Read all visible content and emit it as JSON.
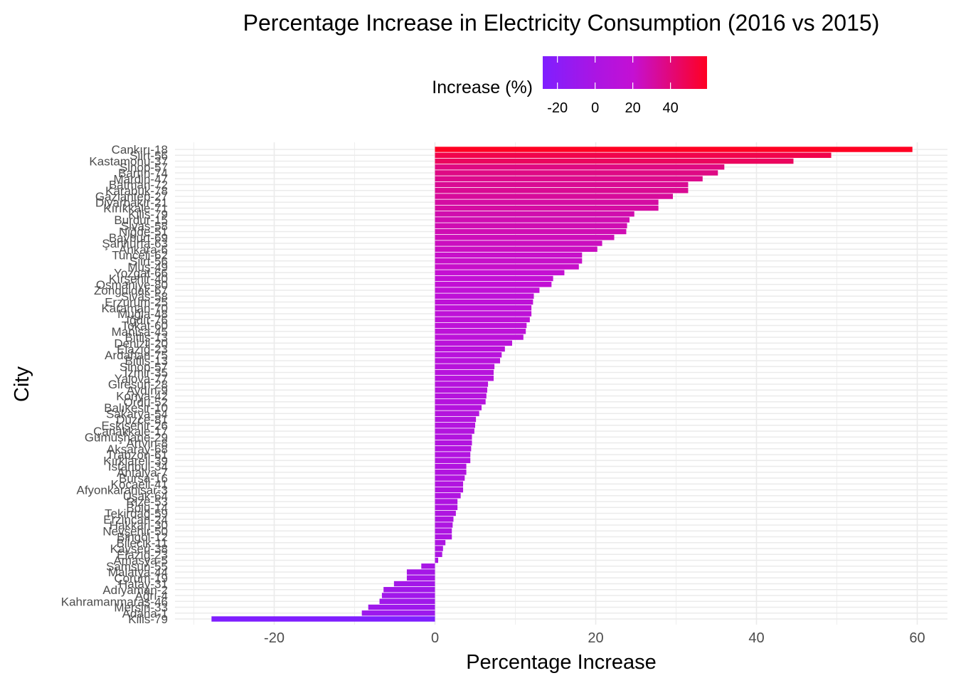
{
  "chart_data": {
    "type": "bar",
    "orientation": "horizontal",
    "title": "Percentage Increase in Electricity Consumption (2016 vs 2015)",
    "xlabel": "Percentage Increase",
    "ylabel": "City",
    "xlim": [
      -31,
      64
    ],
    "x_ticks": [
      -20,
      0,
      20,
      40,
      60
    ],
    "grid": true,
    "legend": {
      "title": "Increase (%)",
      "placement": "top",
      "ticks": [
        -20,
        0,
        20,
        40
      ],
      "range": [
        -27.8,
        59.4
      ],
      "colors": {
        "low": "#7f1fff",
        "mid": "#c410d3",
        "high": "#ff0022"
      }
    },
    "categories": [
      "Cankırı-18",
      "Siirt-56",
      "Kastamonu-37",
      "Sinop-57",
      "Bartın-74",
      "Mardin-47",
      "Batman-72",
      "Karabük-78",
      "Gaziantep-27",
      "Diyarbakır-21",
      "Kırıkkale-71",
      "Kilis-79",
      "Burdur-15",
      "Sivas-58",
      "Niğde-51",
      "Bayburt-69",
      "Şanlıurfa-63",
      "Ankara-6",
      "Tunceli-62",
      "Siirt-56",
      "Muş-49",
      "Yozgat-66",
      "Kırşehir-40",
      "Osmaniye-80",
      "Zonguldak-67",
      "Sivas-58",
      "Erzurum-25",
      "Karaman-70",
      "Muğla-48",
      "Iğdır-76",
      "Tokat-60",
      "Manisa-45",
      "Bitlis-13",
      "Denizli-20",
      "Elazığ-23",
      "Ardahan-75",
      "Bitlis-13",
      "Sinop-57",
      "İzmir-35",
      "Yalova-77",
      "Giresun-28",
      "Aydın-9",
      "Konya-42",
      "Ordu-52",
      "Balıkesir-10",
      "Sakarya-54",
      "Düzce-81",
      "Eskişehir-26",
      "Çanakkale-17",
      "Gümüşhane-29",
      "Artvin-8",
      "Aksaray-68",
      "Trabzon-61",
      "Kırklareli-39",
      "İstanbul-34",
      "Antalya-7",
      "Bursa-16",
      "Kocaeli-41",
      "Afyonkarahisar-3",
      "Uşak-64",
      "Rize-53",
      "Bolu-14",
      "Tekirdağ-59",
      "Erzincan-24",
      "Hakkari-30",
      "Nevşehir-50",
      "Bingöl-12",
      "Bilecik-11",
      "Kayseri-38",
      "Elazığ-23",
      "Amasya-5",
      "Samsun-55",
      "Malatya-44",
      "Çorum-19",
      "Hatay-31",
      "Adıyaman-2",
      "Ağrı-4",
      "Kahramanmaraş-46",
      "Mersin-33",
      "Adana-1",
      "Kilis-79"
    ],
    "values": [
      59.4,
      49.3,
      44.6,
      36.0,
      35.2,
      33.3,
      31.5,
      31.5,
      29.6,
      27.8,
      27.8,
      24.8,
      24.2,
      23.9,
      23.8,
      22.3,
      20.8,
      20.2,
      18.3,
      18.3,
      17.9,
      16.1,
      14.7,
      14.5,
      13.0,
      12.3,
      12.2,
      12.0,
      12.0,
      11.8,
      11.4,
      11.3,
      11.0,
      9.6,
      8.7,
      8.3,
      8.1,
      7.4,
      7.3,
      7.3,
      6.6,
      6.5,
      6.4,
      6.3,
      5.8,
      5.5,
      5.1,
      5.0,
      4.9,
      4.6,
      4.6,
      4.5,
      4.4,
      4.4,
      3.9,
      3.9,
      3.7,
      3.5,
      3.5,
      3.2,
      2.8,
      2.8,
      2.6,
      2.3,
      2.2,
      2.1,
      2.1,
      1.3,
      1.0,
      0.9,
      0.4,
      -1.7,
      -3.5,
      -3.5,
      -5.1,
      -6.4,
      -6.6,
      -6.9,
      -8.3,
      -9.1,
      -27.8
    ]
  }
}
